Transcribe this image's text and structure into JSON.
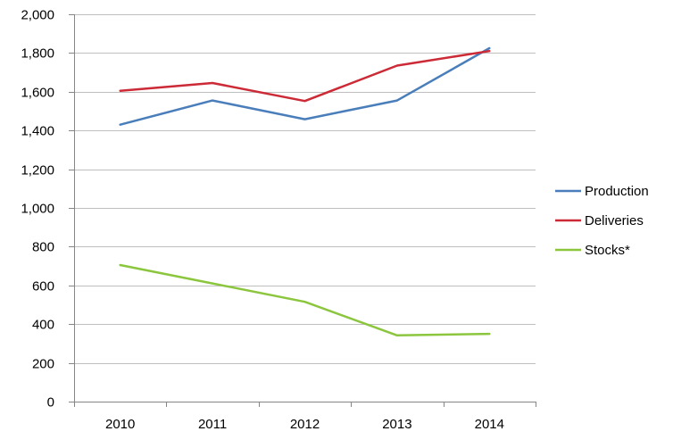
{
  "chart_data": {
    "type": "line",
    "title": "",
    "xlabel": "",
    "ylabel": "",
    "categories": [
      "2010",
      "2011",
      "2012",
      "2013",
      "2014"
    ],
    "ylim": [
      0,
      2000
    ],
    "yticks": [
      0,
      200,
      400,
      600,
      800,
      1000,
      1200,
      1400,
      1600,
      1800,
      2000
    ],
    "ytick_labels": [
      "0",
      "200",
      "400",
      "600",
      "800",
      "1,000",
      "1,200",
      "1,400",
      "1,600",
      "1,800",
      "2,000"
    ],
    "grid": true,
    "legend_position": "right",
    "series": [
      {
        "name": "Production",
        "color": "#4a7ebb",
        "values": [
          1430,
          1555,
          1458,
          1555,
          1825
        ]
      },
      {
        "name": "Deliveries",
        "color": "#cc2a36",
        "values": [
          1605,
          1645,
          1552,
          1735,
          1810
        ]
      },
      {
        "name": "Stocks*",
        "color": "#8cc63e",
        "values": [
          705,
          610,
          515,
          342,
          350
        ]
      }
    ]
  }
}
